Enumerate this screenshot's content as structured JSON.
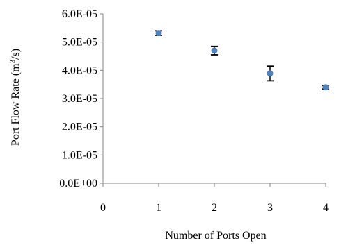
{
  "chart_data": {
    "type": "scatter",
    "title": "",
    "xlabel": "Number of Ports Open",
    "ylabel": "Port Flow Rate (m³/s)",
    "ylabel_parts": {
      "before": "Port Flow Rate (m",
      "sup": "3",
      "after": "/s)"
    },
    "xlim": [
      0,
      4
    ],
    "ylim": [
      0,
      6e-05
    ],
    "x_ticks": [
      0,
      1,
      2,
      3,
      4
    ],
    "x_tick_labels": [
      "0",
      "1",
      "2",
      "3",
      "4"
    ],
    "y_ticks": [
      0,
      1e-05,
      2e-05,
      3e-05,
      4e-05,
      5e-05,
      6e-05
    ],
    "y_tick_labels": [
      "0.0E+00",
      "1.0E-05",
      "2.0E-05",
      "3.0E-05",
      "4.0E-05",
      "5.0E-05",
      "6.0E-05"
    ],
    "grid": false,
    "legend": "none",
    "series": [
      {
        "x": [
          1,
          2,
          3,
          4
        ],
        "y": [
          5.32e-05,
          4.7e-05,
          3.89e-05,
          3.4e-05
        ],
        "error": [
          8e-07,
          1.5e-06,
          2.6e-06,
          6e-07
        ]
      }
    ]
  },
  "colors": {
    "marker": "#4f81bd",
    "axis": "#868686",
    "error_bar": "#000000"
  }
}
